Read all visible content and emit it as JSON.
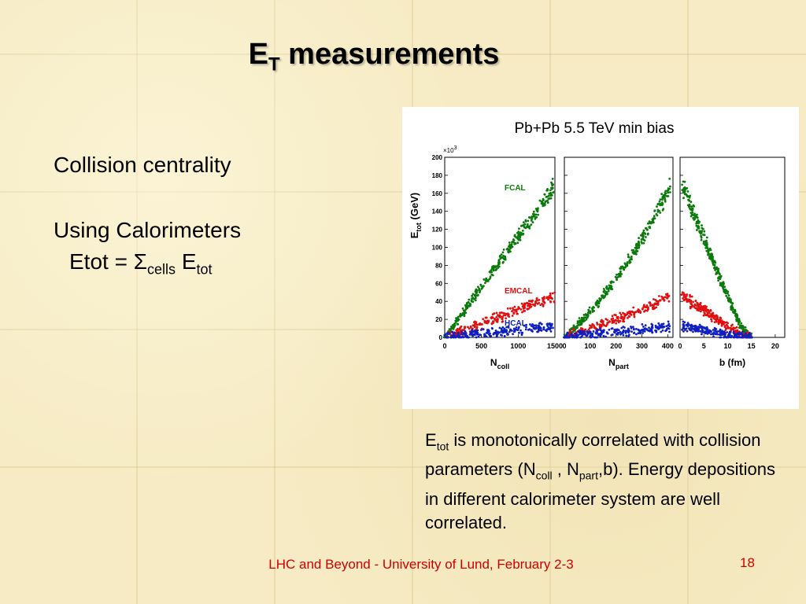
{
  "slide": {
    "title_main": "E",
    "title_sub": "T",
    "title_rest": " measurements",
    "bullet1": "Collision centrality",
    "bullet2": "Using Calorimeters",
    "formula": {
      "lhs": "Etot = ",
      "sigma": "Σ",
      "sigma_sub": "cells",
      "e": " E",
      "e_sub": "tot"
    },
    "caption": {
      "p1": "E",
      "p1_sub": "tot",
      "p2": " is monotonically correlated with collision parameters (N",
      "p3_sub": "coll",
      "p4": " , N",
      "p5_sub": "part",
      "p6": ",b). Energy depositions in different calorimeter system are well correlated."
    },
    "footer": "LHC and Beyond - University of Lund, February 2-3",
    "page_number": "18"
  },
  "chart_data": {
    "type": "scatter",
    "title": "Pb+Pb 5.5 TeV min bias",
    "ylabel": "E",
    "ylabel_sub": "tot",
    "ylabel_unit": " (GeV)",
    "y_multiplier": "×10",
    "y_multiplier_exp": "3",
    "ylim": [
      0,
      200
    ],
    "yticks": [
      0,
      20,
      40,
      60,
      80,
      100,
      120,
      140,
      160,
      180,
      200
    ],
    "colors": {
      "FCAL": "#0a7a0a",
      "EMCAL": "#e01010",
      "HCAL": "#1020c0"
    },
    "series_labels": [
      "FCAL",
      "EMCAL",
      "HCAL"
    ],
    "panels": [
      {
        "xlabel": "N",
        "xlabel_sub": "coll",
        "xlim": [
          0,
          1500
        ],
        "xticks": [
          0,
          500,
          1000,
          1500
        ],
        "series": [
          {
            "name": "FCAL",
            "x": [
              0,
              1500
            ],
            "y": [
              0,
              168
            ]
          },
          {
            "name": "EMCAL",
            "x": [
              0,
              1500
            ],
            "y": [
              0,
              46
            ]
          },
          {
            "name": "HCAL",
            "x": [
              0,
              1500
            ],
            "y": [
              0,
              12
            ]
          }
        ]
      },
      {
        "xlabel": "N",
        "xlabel_sub": "part",
        "xlim": [
          0,
          420
        ],
        "xticks": [
          0,
          100,
          200,
          300,
          400
        ],
        "series": [
          {
            "name": "FCAL",
            "x": [
              0,
              100,
              200,
              300,
              410
            ],
            "y": [
              0,
              28,
              65,
              108,
              168
            ]
          },
          {
            "name": "EMCAL",
            "x": [
              0,
              100,
              200,
              300,
              410
            ],
            "y": [
              0,
              10,
              20,
              31,
              46
            ]
          },
          {
            "name": "HCAL",
            "x": [
              0,
              410
            ],
            "y": [
              0,
              12
            ]
          }
        ]
      },
      {
        "xlabel": "b (fm)",
        "xlim": [
          0,
          22
        ],
        "xticks": [
          0,
          5,
          10,
          15,
          20
        ],
        "series": [
          {
            "name": "FCAL",
            "x": [
              0.5,
              5,
              10,
              13,
              15
            ],
            "y": [
              168,
              110,
              45,
              10,
              0
            ]
          },
          {
            "name": "EMCAL",
            "x": [
              0.5,
              5,
              10,
              13,
              15
            ],
            "y": [
              46,
              30,
              12,
              3,
              0
            ]
          },
          {
            "name": "HCAL",
            "x": [
              0.5,
              5,
              10,
              13,
              15
            ],
            "y": [
              12,
              8,
              3,
              1,
              0
            ]
          }
        ]
      }
    ]
  }
}
